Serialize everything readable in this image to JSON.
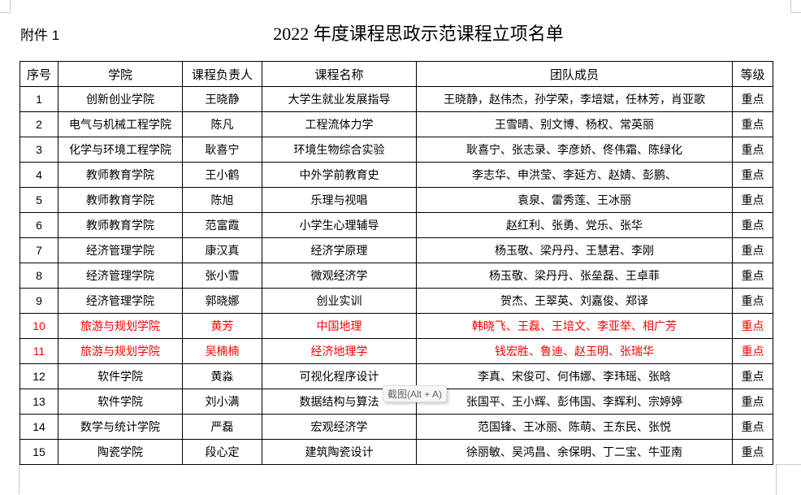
{
  "header": {
    "attachment_label": "附件 1",
    "title": "2022 年度课程思政示范课程立项名单"
  },
  "table": {
    "columns": [
      "序号",
      "学院",
      "课程负责人",
      "课程名称",
      "团队成员",
      "等级"
    ],
    "highlight_color": "#ff0000",
    "rows": [
      {
        "no": "1",
        "college": "创新创业学院",
        "leader": "王晓静",
        "course": "大学生就业发展指导",
        "members": "王晓静，赵伟杰，孙学荣，李培斌，任林芳，肖亚歌",
        "level": "重点",
        "highlight": false
      },
      {
        "no": "2",
        "college": "电气与机械工程学院",
        "leader": "陈凡",
        "course": "工程流体力学",
        "members": "王雪晴、别文博、杨权、常英丽",
        "level": "重点",
        "highlight": false
      },
      {
        "no": "3",
        "college": "化学与环境工程学院",
        "leader": "耿喜宁",
        "course": "环境生物综合实验",
        "members": "耿喜宁、张志录、李彦娇、佟伟霜、陈绿化",
        "level": "重点",
        "highlight": false
      },
      {
        "no": "4",
        "college": "教师教育学院",
        "leader": "王小鹤",
        "course": "中外学前教育史",
        "members": "李志华、申洪莹、李延方、赵婧、彭鹏、",
        "level": "重点",
        "highlight": false
      },
      {
        "no": "5",
        "college": "教师教育学院",
        "leader": "陈旭",
        "course": "乐理与视唱",
        "members": "袁泉、雷秀莲、王冰丽",
        "level": "重点",
        "highlight": false
      },
      {
        "no": "6",
        "college": "教师教育学院",
        "leader": "范富霞",
        "course": "小学生心理辅导",
        "members": "赵红利、张勇、党乐、张华",
        "level": "重点",
        "highlight": false
      },
      {
        "no": "7",
        "college": "经济管理学院",
        "leader": "康汉真",
        "course": "经济学原理",
        "members": "杨玉敬、梁丹丹、王慧君、李刚",
        "level": "重点",
        "highlight": false
      },
      {
        "no": "8",
        "college": "经济管理学院",
        "leader": "张小雪",
        "course": "微观经济学",
        "members": "杨玉敬、梁丹丹、张垒磊、王卓菲",
        "level": "重点",
        "highlight": false
      },
      {
        "no": "9",
        "college": "经济管理学院",
        "leader": "郭晓娜",
        "course": "创业实训",
        "members": "贺杰、王翠英、刘嘉俊、郑译",
        "level": "重点",
        "highlight": false
      },
      {
        "no": "10",
        "college": "旅游与规划学院",
        "leader": "黄芳",
        "course": "中国地理",
        "members": "韩晓飞、王磊、王培文、李亚举、相广芳",
        "level": "重点",
        "highlight": true
      },
      {
        "no": "11",
        "college": "旅游与规划学院",
        "leader": "吴楠楠",
        "course": "经济地理学",
        "members": "钱宏胜、鲁迪、赵玉明、张瑞华",
        "level": "重点",
        "highlight": true
      },
      {
        "no": "12",
        "college": "软件学院",
        "leader": "黄淼",
        "course": "可视化程序设计",
        "members": "李真、宋俊可、何伟娜、李玮瑶、张晗",
        "level": "重点",
        "highlight": false
      },
      {
        "no": "13",
        "college": "软件学院",
        "leader": "刘小满",
        "course": "数据结构与算法",
        "members": "张国平、王小辉、彭伟国、李辉利、宗婷婷",
        "level": "重点",
        "highlight": false
      },
      {
        "no": "14",
        "college": "数学与统计学院",
        "leader": "严磊",
        "course": "宏观经济学",
        "members": "范国锋、王冰丽、陈萌、王东民、张悦",
        "level": "重点",
        "highlight": false
      },
      {
        "no": "15",
        "college": "陶瓷学院",
        "leader": "段心定",
        "course": "建筑陶瓷设计",
        "members": "徐丽敏、吴鸿昌、余保明、丁二宝、牛亚南",
        "level": "重点",
        "highlight": false
      }
    ]
  },
  "tooltip": {
    "text": "截图(Alt + A)"
  }
}
